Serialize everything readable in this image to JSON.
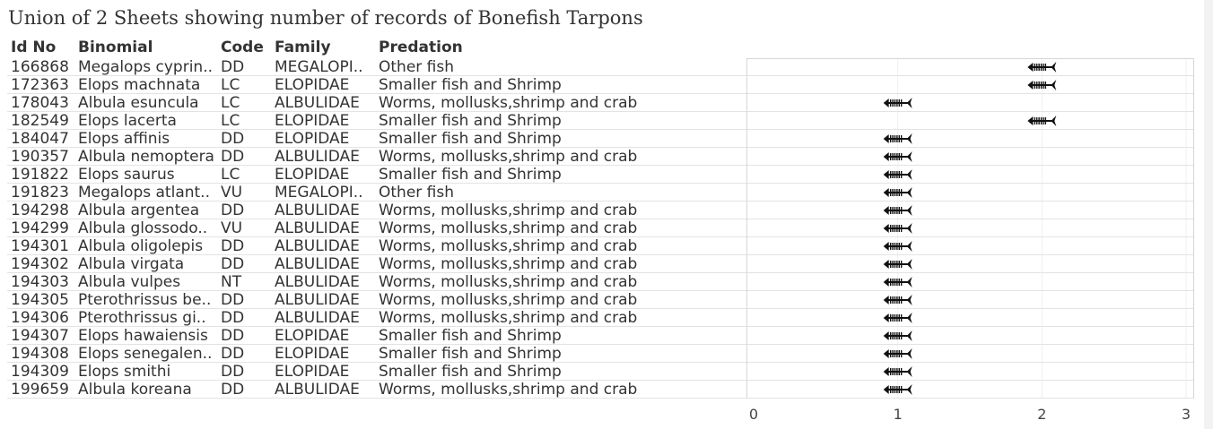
{
  "title": "Union of 2 Sheets showing number of records of Bonefish Tarpons",
  "columns": {
    "id_no": "Id No",
    "binomial": "Binomial",
    "code": "Code",
    "family": "Family",
    "predation": "Predation"
  },
  "rows": [
    {
      "id": "166868",
      "binomial": "Megalops cyprin..",
      "code": "DD",
      "family": "MEGALOPI..",
      "predation": "Other fish",
      "count": 2
    },
    {
      "id": "172363",
      "binomial": "Elops machnata",
      "code": "LC",
      "family": "ELOPIDAE",
      "predation": "Smaller fish and Shrimp",
      "count": 2
    },
    {
      "id": "178043",
      "binomial": "Albula esuncula",
      "code": "LC",
      "family": "ALBULIDAE",
      "predation": "Worms, mollusks,shrimp and crab",
      "count": 1
    },
    {
      "id": "182549",
      "binomial": "Elops lacerta",
      "code": "LC",
      "family": "ELOPIDAE",
      "predation": "Smaller fish and Shrimp",
      "count": 2
    },
    {
      "id": "184047",
      "binomial": "Elops affinis",
      "code": "DD",
      "family": "ELOPIDAE",
      "predation": "Smaller fish and Shrimp",
      "count": 1
    },
    {
      "id": "190357",
      "binomial": "Albula nemoptera",
      "code": "DD",
      "family": "ALBULIDAE",
      "predation": "Worms, mollusks,shrimp and crab",
      "count": 1
    },
    {
      "id": "191822",
      "binomial": "Elops saurus",
      "code": "LC",
      "family": "ELOPIDAE",
      "predation": "Smaller fish and Shrimp",
      "count": 1
    },
    {
      "id": "191823",
      "binomial": "Megalops atlant..",
      "code": "VU",
      "family": "MEGALOPI..",
      "predation": "Other fish",
      "count": 1
    },
    {
      "id": "194298",
      "binomial": "Albula argentea",
      "code": "DD",
      "family": "ALBULIDAE",
      "predation": "Worms, mollusks,shrimp and crab",
      "count": 1
    },
    {
      "id": "194299",
      "binomial": "Albula glossodo..",
      "code": "VU",
      "family": "ALBULIDAE",
      "predation": "Worms, mollusks,shrimp and crab",
      "count": 1
    },
    {
      "id": "194301",
      "binomial": "Albula oligolepis",
      "code": "DD",
      "family": "ALBULIDAE",
      "predation": "Worms, mollusks,shrimp and crab",
      "count": 1
    },
    {
      "id": "194302",
      "binomial": "Albula virgata",
      "code": "DD",
      "family": "ALBULIDAE",
      "predation": "Worms, mollusks,shrimp and crab",
      "count": 1
    },
    {
      "id": "194303",
      "binomial": "Albula vulpes",
      "code": "NT",
      "family": "ALBULIDAE",
      "predation": "Worms, mollusks,shrimp and crab",
      "count": 1
    },
    {
      "id": "194305",
      "binomial": "Pterothrissus be..",
      "code": "DD",
      "family": "ALBULIDAE",
      "predation": "Worms, mollusks,shrimp and crab",
      "count": 1
    },
    {
      "id": "194306",
      "binomial": "Pterothrissus gi..",
      "code": "DD",
      "family": "ALBULIDAE",
      "predation": "Worms, mollusks,shrimp and crab",
      "count": 1
    },
    {
      "id": "194307",
      "binomial": "Elops hawaiensis",
      "code": "DD",
      "family": "ELOPIDAE",
      "predation": "Smaller fish and Shrimp",
      "count": 1
    },
    {
      "id": "194308",
      "binomial": "Elops senegalen..",
      "code": "DD",
      "family": "ELOPIDAE",
      "predation": "Smaller fish and Shrimp",
      "count": 1
    },
    {
      "id": "194309",
      "binomial": "Elops smithi",
      "code": "DD",
      "family": "ELOPIDAE",
      "predation": "Smaller fish and Shrimp",
      "count": 1
    },
    {
      "id": "199659",
      "binomial": "Albula koreana",
      "code": "DD",
      "family": "ALBULIDAE",
      "predation": "Worms, mollusks,shrimp and crab",
      "count": 1
    }
  ],
  "chart_data": {
    "type": "scatter",
    "mark": "fish-skeleton-icon",
    "x_axis": {
      "min": 0,
      "max": 3,
      "ticks": [
        "0",
        "1",
        "2",
        "3"
      ]
    },
    "categories": [
      "166868",
      "172363",
      "178043",
      "182549",
      "184047",
      "190357",
      "191822",
      "191823",
      "194298",
      "194299",
      "194301",
      "194302",
      "194303",
      "194305",
      "194306",
      "194307",
      "194308",
      "194309",
      "199659"
    ],
    "values": [
      2,
      2,
      1,
      2,
      1,
      1,
      1,
      1,
      1,
      1,
      1,
      1,
      1,
      1,
      1,
      1,
      1,
      1,
      1
    ],
    "grid": true
  },
  "colors": {
    "mark": "#111111",
    "gridline": "#efefef",
    "row_separator": "#e3e3e3",
    "text": "#333333"
  }
}
